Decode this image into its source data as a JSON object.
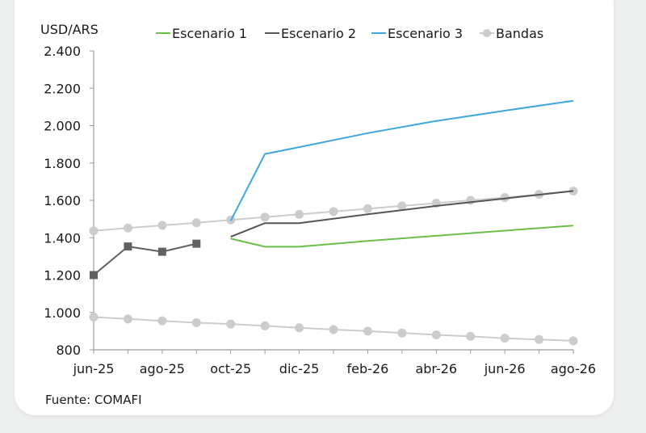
{
  "chart_data": {
    "type": "line",
    "y_unit_label": "USD/ARS",
    "source": "Fuente: COMAFI",
    "ylim": [
      800,
      2400
    ],
    "y_ticks": [
      "800",
      "1.000",
      "1.200",
      "1.400",
      "1.600",
      "1.800",
      "2.000",
      "2.200",
      "2.400"
    ],
    "y_tick_values": [
      800,
      1000,
      1200,
      1400,
      1600,
      1800,
      2000,
      2200,
      2400
    ],
    "xlim": [
      0,
      14
    ],
    "x_ticks": [
      {
        "label": "jun-25",
        "x": 0
      },
      {
        "label": "ago-25",
        "x": 2
      },
      {
        "label": "oct-25",
        "x": 4
      },
      {
        "label": "dic-25",
        "x": 6
      },
      {
        "label": "feb-26",
        "x": 8
      },
      {
        "label": "abr-26",
        "x": 10
      },
      {
        "label": "jun-26",
        "x": 12
      },
      {
        "label": "ago-26",
        "x": 14
      }
    ],
    "grid": false,
    "legend_position": "top",
    "series": [
      {
        "name": "Escenario 1",
        "color": "#6abf4b",
        "marker": "none",
        "points": [
          [
            4,
            1395
          ],
          [
            5,
            1352
          ],
          [
            6,
            1352
          ],
          [
            8,
            1383
          ],
          [
            10,
            1410
          ],
          [
            12,
            1438
          ],
          [
            14,
            1465
          ]
        ]
      },
      {
        "name": "Escenario 2",
        "color": "#555555",
        "marker": "none",
        "points": [
          [
            4,
            1405
          ],
          [
            5,
            1478
          ],
          [
            6,
            1478
          ],
          [
            8,
            1525
          ],
          [
            10,
            1570
          ],
          [
            12,
            1610
          ],
          [
            14,
            1650
          ]
        ]
      },
      {
        "name": "Escenario 3",
        "color": "#3ca6dd",
        "marker": "none",
        "points": [
          [
            4,
            1490
          ],
          [
            5,
            1848
          ],
          [
            6,
            1885
          ],
          [
            8,
            1960
          ],
          [
            10,
            2025
          ],
          [
            12,
            2080
          ],
          [
            14,
            2133
          ]
        ]
      },
      {
        "name": "Bandas",
        "color": "#cccccc",
        "marker": "circle",
        "points": [
          [
            0,
            1437
          ],
          [
            1,
            1452
          ],
          [
            2,
            1466
          ],
          [
            3,
            1480
          ],
          [
            4,
            1495
          ],
          [
            5,
            1510
          ],
          [
            6,
            1525
          ],
          [
            7,
            1540
          ],
          [
            8,
            1555
          ],
          [
            9,
            1570
          ],
          [
            10,
            1585
          ],
          [
            11,
            1600
          ],
          [
            12,
            1615
          ],
          [
            13,
            1632
          ],
          [
            14,
            1650
          ]
        ]
      },
      {
        "name": "",
        "color": "#cccccc",
        "marker": "circle",
        "in_legend": false,
        "points": [
          [
            0,
            975
          ],
          [
            1,
            965
          ],
          [
            2,
            955
          ],
          [
            3,
            945
          ],
          [
            4,
            938
          ],
          [
            5,
            928
          ],
          [
            6,
            918
          ],
          [
            7,
            908
          ],
          [
            8,
            900
          ],
          [
            9,
            890
          ],
          [
            10,
            880
          ],
          [
            11,
            872
          ],
          [
            12,
            862
          ],
          [
            13,
            855
          ],
          [
            14,
            848
          ]
        ]
      },
      {
        "name": "",
        "color": "#616161",
        "marker": "square",
        "in_legend": false,
        "points": [
          [
            0,
            1200
          ],
          [
            1,
            1353
          ],
          [
            2,
            1325
          ],
          [
            3,
            1368
          ]
        ]
      }
    ]
  }
}
